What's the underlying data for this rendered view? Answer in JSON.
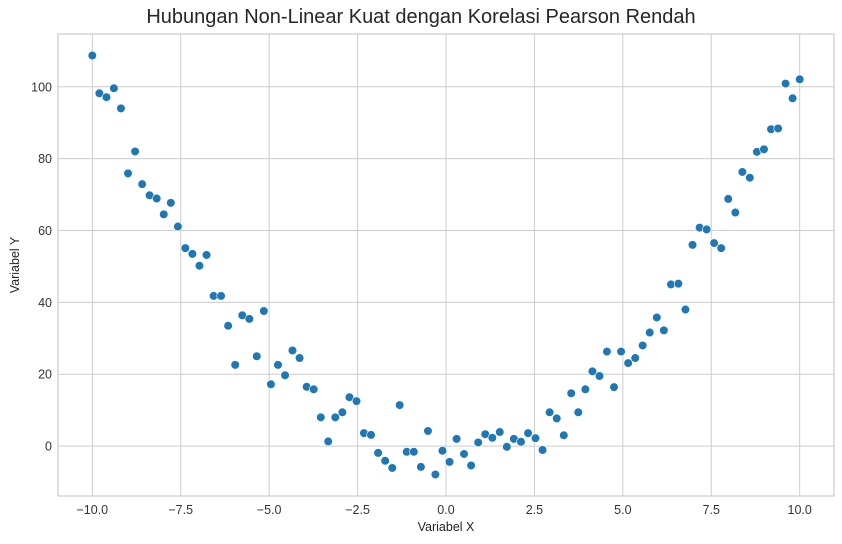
{
  "chart_data": {
    "type": "scatter",
    "title": "Hubungan Non-Linear Kuat dengan Korelasi Pearson Rendah",
    "xlabel": "Variabel X",
    "ylabel": "Variabel Y",
    "xlim": [
      -10.97,
      10.97
    ],
    "ylim": [
      -13.9,
      114.7
    ],
    "xticks": [
      -10.0,
      -7.5,
      -5.0,
      -2.5,
      0.0,
      2.5,
      5.0,
      7.5,
      10.0
    ],
    "xtick_labels": [
      "−10.0",
      "−7.5",
      "−5.0",
      "−2.5",
      "0.0",
      "2.5",
      "5.0",
      "7.5",
      "10.0"
    ],
    "yticks": [
      0,
      20,
      40,
      60,
      80,
      100
    ],
    "ytick_labels": [
      "0",
      "20",
      "40",
      "60",
      "80",
      "100"
    ],
    "grid": true,
    "legend": null,
    "marker_color": "#1f77b4",
    "series": [
      {
        "name": "data",
        "points": [
          [
            -10.0,
            108.7
          ],
          [
            -9.8,
            98.2
          ],
          [
            -9.6,
            97.1
          ],
          [
            -9.39,
            99.6
          ],
          [
            -9.19,
            94.0
          ],
          [
            -8.99,
            75.9
          ],
          [
            -8.79,
            82.0
          ],
          [
            -8.59,
            72.9
          ],
          [
            -8.38,
            69.8
          ],
          [
            -8.18,
            68.9
          ],
          [
            -7.98,
            64.5
          ],
          [
            -7.78,
            67.7
          ],
          [
            -7.58,
            61.1
          ],
          [
            -7.37,
            55.1
          ],
          [
            -7.17,
            53.5
          ],
          [
            -6.97,
            50.2
          ],
          [
            -6.77,
            53.2
          ],
          [
            -6.57,
            41.8
          ],
          [
            -6.36,
            41.8
          ],
          [
            -6.16,
            33.5
          ],
          [
            -5.96,
            22.6
          ],
          [
            -5.76,
            36.4
          ],
          [
            -5.56,
            35.4
          ],
          [
            -5.35,
            25.0
          ],
          [
            -5.15,
            37.6
          ],
          [
            -4.95,
            17.2
          ],
          [
            -4.75,
            22.6
          ],
          [
            -4.55,
            19.7
          ],
          [
            -4.34,
            26.6
          ],
          [
            -4.14,
            24.5
          ],
          [
            -3.94,
            16.5
          ],
          [
            -3.74,
            15.8
          ],
          [
            -3.54,
            8.0
          ],
          [
            -3.33,
            1.3
          ],
          [
            -3.13,
            8.0
          ],
          [
            -2.93,
            9.4
          ],
          [
            -2.73,
            13.6
          ],
          [
            -2.53,
            12.5
          ],
          [
            -2.32,
            3.6
          ],
          [
            -2.12,
            3.1
          ],
          [
            -1.92,
            -1.9
          ],
          [
            -1.72,
            -4.1
          ],
          [
            -1.52,
            -6.1
          ],
          [
            -1.31,
            11.4
          ],
          [
            -1.11,
            -1.6
          ],
          [
            -0.91,
            -1.6
          ],
          [
            -0.71,
            -5.8
          ],
          [
            -0.51,
            4.2
          ],
          [
            -0.3,
            -7.9
          ],
          [
            -0.1,
            -1.3
          ],
          [
            0.1,
            -4.4
          ],
          [
            0.3,
            2.0
          ],
          [
            0.51,
            -2.2
          ],
          [
            0.71,
            -5.4
          ],
          [
            0.91,
            1.0
          ],
          [
            1.11,
            3.3
          ],
          [
            1.31,
            2.3
          ],
          [
            1.52,
            3.9
          ],
          [
            1.72,
            -0.2
          ],
          [
            1.92,
            2.0
          ],
          [
            2.12,
            1.2
          ],
          [
            2.32,
            3.6
          ],
          [
            2.53,
            2.2
          ],
          [
            2.73,
            -1.1
          ],
          [
            2.93,
            9.4
          ],
          [
            3.13,
            7.7
          ],
          [
            3.33,
            3.0
          ],
          [
            3.54,
            14.7
          ],
          [
            3.74,
            9.4
          ],
          [
            3.94,
            15.8
          ],
          [
            4.14,
            20.8
          ],
          [
            4.34,
            19.5
          ],
          [
            4.55,
            26.3
          ],
          [
            4.75,
            16.4
          ],
          [
            4.95,
            26.3
          ],
          [
            5.15,
            23.1
          ],
          [
            5.35,
            24.5
          ],
          [
            5.56,
            28.0
          ],
          [
            5.76,
            31.6
          ],
          [
            5.96,
            35.8
          ],
          [
            6.16,
            32.2
          ],
          [
            6.36,
            45.0
          ],
          [
            6.57,
            45.2
          ],
          [
            6.77,
            38.0
          ],
          [
            6.97,
            56.0
          ],
          [
            7.17,
            60.8
          ],
          [
            7.37,
            60.3
          ],
          [
            7.58,
            56.5
          ],
          [
            7.78,
            55.1
          ],
          [
            7.98,
            68.8
          ],
          [
            8.18,
            65.0
          ],
          [
            8.38,
            76.3
          ],
          [
            8.59,
            74.7
          ],
          [
            8.79,
            81.9
          ],
          [
            8.99,
            82.6
          ],
          [
            9.19,
            88.2
          ],
          [
            9.39,
            88.4
          ],
          [
            9.6,
            100.9
          ],
          [
            9.8,
            96.8
          ],
          [
            10.0,
            102.1
          ]
        ]
      }
    ]
  }
}
